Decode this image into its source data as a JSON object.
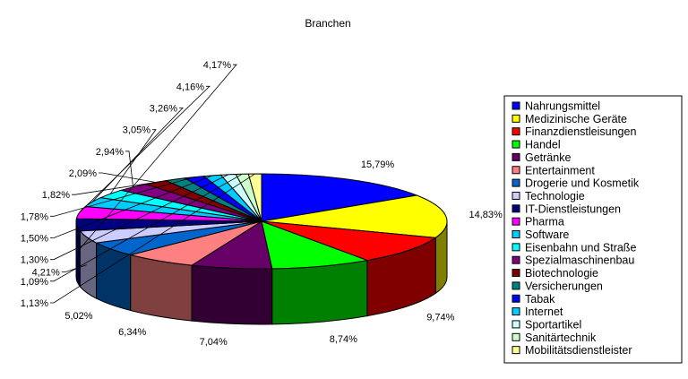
{
  "chart_data": {
    "type": "pie",
    "title": "Branchen",
    "legend_position": "right",
    "categories": [
      "Nahrungsmittel",
      "Medizinische Geräte",
      "Finanzdienstleisungen",
      "Handel",
      "Getränke",
      "Entertainment",
      "Drogerie und Kosmetik",
      "Technologie",
      "IT-Dienstleistungen",
      "Pharma",
      "Software",
      "Eisenbahn und Straße",
      "Spezialmaschinenbau",
      "Biotechnologie",
      "Versicherungen",
      "Tabak",
      "Internet",
      "Sportartikel",
      "Sanitärtechnik",
      "Mobilitätsdienstleister"
    ],
    "values": [
      15.79,
      14.83,
      9.74,
      8.74,
      7.04,
      6.34,
      5.02,
      4.21,
      4.17,
      4.16,
      3.26,
      3.05,
      2.94,
      2.09,
      1.82,
      1.78,
      1.5,
      1.3,
      1.09,
      1.13
    ],
    "labels": [
      "15,79%",
      "14,83%",
      "9,74%",
      "8,74%",
      "7,04%",
      "6,34%",
      "5,02%",
      "4,21%",
      "4,17%",
      "4,16%",
      "3,26%",
      "3,05%",
      "2,94%",
      "2,09%",
      "1,82%",
      "1,78%",
      "1,50%",
      "1,30%",
      "1,09%",
      "1,13%"
    ],
    "colors": [
      "#0000FF",
      "#FFFF00",
      "#FF0000",
      "#00FF00",
      "#660066",
      "#FF8080",
      "#0066CC",
      "#CCCCFF",
      "#000080",
      "#FF00FF",
      "#00CCFF",
      "#00FFFF",
      "#800080",
      "#800000",
      "#008080",
      "#0000FF",
      "#00CCFF",
      "#CCFFFF",
      "#CCFFCC",
      "#FFFF99"
    ]
  }
}
